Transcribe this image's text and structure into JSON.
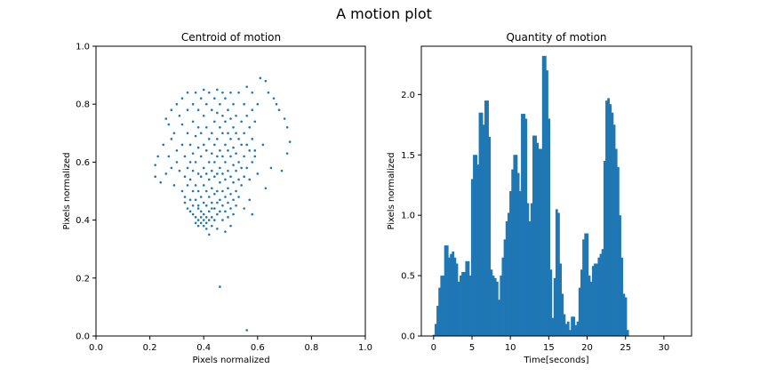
{
  "figure": {
    "suptitle": "A motion plot"
  },
  "chart_data": [
    {
      "type": "scatter",
      "title": "Centroid of motion",
      "xlabel": "Pixels normalized",
      "ylabel": "Pixels normalized",
      "xlim": [
        0,
        1
      ],
      "ylim": [
        0,
        1
      ],
      "xticks": [
        0.0,
        0.2,
        0.4,
        0.6,
        0.8,
        1.0
      ],
      "yticks": [
        0.0,
        0.2,
        0.4,
        0.6,
        0.8,
        1.0
      ],
      "xtick_labels": [
        "0.0",
        "0.2",
        "0.4",
        "0.6",
        "0.8",
        "1.0"
      ],
      "ytick_labels": [
        "0.0",
        "0.2",
        "0.4",
        "0.6",
        "0.8",
        "1.0"
      ],
      "color": "#1f77b4",
      "grid": false,
      "points": [
        [
          0.22,
          0.59
        ],
        [
          0.22,
          0.55
        ],
        [
          0.23,
          0.62
        ],
        [
          0.24,
          0.53
        ],
        [
          0.25,
          0.66
        ],
        [
          0.26,
          0.75
        ],
        [
          0.26,
          0.56
        ],
        [
          0.27,
          0.73
        ],
        [
          0.27,
          0.62
        ],
        [
          0.28,
          0.78
        ],
        [
          0.28,
          0.68
        ],
        [
          0.28,
          0.58
        ],
        [
          0.29,
          0.7
        ],
        [
          0.29,
          0.52
        ],
        [
          0.3,
          0.8
        ],
        [
          0.3,
          0.64
        ],
        [
          0.3,
          0.6
        ],
        [
          0.31,
          0.76
        ],
        [
          0.31,
          0.57
        ],
        [
          0.32,
          0.82
        ],
        [
          0.32,
          0.73
        ],
        [
          0.32,
          0.66
        ],
        [
          0.32,
          0.5
        ],
        [
          0.33,
          0.62
        ],
        [
          0.33,
          0.55
        ],
        [
          0.33,
          0.48
        ],
        [
          0.33,
          0.46
        ],
        [
          0.34,
          0.84
        ],
        [
          0.34,
          0.78
        ],
        [
          0.34,
          0.7
        ],
        [
          0.34,
          0.58
        ],
        [
          0.34,
          0.52
        ],
        [
          0.34,
          0.44
        ],
        [
          0.35,
          0.66
        ],
        [
          0.35,
          0.6
        ],
        [
          0.35,
          0.54
        ],
        [
          0.35,
          0.47
        ],
        [
          0.35,
          0.43
        ],
        [
          0.36,
          0.8
        ],
        [
          0.36,
          0.74
        ],
        [
          0.36,
          0.63
        ],
        [
          0.36,
          0.57
        ],
        [
          0.36,
          0.5
        ],
        [
          0.36,
          0.45
        ],
        [
          0.36,
          0.42
        ],
        [
          0.37,
          0.84
        ],
        [
          0.37,
          0.69
        ],
        [
          0.37,
          0.6
        ],
        [
          0.37,
          0.52
        ],
        [
          0.37,
          0.47
        ],
        [
          0.37,
          0.41
        ],
        [
          0.37,
          0.39
        ],
        [
          0.38,
          0.78
        ],
        [
          0.38,
          0.72
        ],
        [
          0.38,
          0.65
        ],
        [
          0.38,
          0.56
        ],
        [
          0.38,
          0.5
        ],
        [
          0.38,
          0.44
        ],
        [
          0.38,
          0.4
        ],
        [
          0.38,
          0.38
        ],
        [
          0.39,
          0.82
        ],
        [
          0.39,
          0.7
        ],
        [
          0.39,
          0.62
        ],
        [
          0.39,
          0.55
        ],
        [
          0.39,
          0.48
        ],
        [
          0.39,
          0.43
        ],
        [
          0.39,
          0.41
        ],
        [
          0.39,
          0.39
        ],
        [
          0.4,
          0.85
        ],
        [
          0.4,
          0.76
        ],
        [
          0.4,
          0.66
        ],
        [
          0.4,
          0.58
        ],
        [
          0.4,
          0.52
        ],
        [
          0.4,
          0.46
        ],
        [
          0.4,
          0.42
        ],
        [
          0.4,
          0.4
        ],
        [
          0.4,
          0.38
        ],
        [
          0.41,
          0.8
        ],
        [
          0.41,
          0.72
        ],
        [
          0.41,
          0.64
        ],
        [
          0.41,
          0.56
        ],
        [
          0.41,
          0.5
        ],
        [
          0.41,
          0.45
        ],
        [
          0.41,
          0.41
        ],
        [
          0.41,
          0.39
        ],
        [
          0.41,
          0.37
        ],
        [
          0.42,
          0.84
        ],
        [
          0.42,
          0.68
        ],
        [
          0.42,
          0.6
        ],
        [
          0.42,
          0.54
        ],
        [
          0.42,
          0.48
        ],
        [
          0.42,
          0.43
        ],
        [
          0.42,
          0.4
        ],
        [
          0.42,
          0.35
        ],
        [
          0.43,
          0.78
        ],
        [
          0.43,
          0.7
        ],
        [
          0.43,
          0.63
        ],
        [
          0.43,
          0.57
        ],
        [
          0.43,
          0.51
        ],
        [
          0.43,
          0.46
        ],
        [
          0.43,
          0.41
        ],
        [
          0.43,
          0.38
        ],
        [
          0.44,
          0.82
        ],
        [
          0.44,
          0.74
        ],
        [
          0.44,
          0.66
        ],
        [
          0.44,
          0.6
        ],
        [
          0.44,
          0.55
        ],
        [
          0.44,
          0.49
        ],
        [
          0.44,
          0.44
        ],
        [
          0.44,
          0.4
        ],
        [
          0.45,
          0.85
        ],
        [
          0.45,
          0.77
        ],
        [
          0.45,
          0.68
        ],
        [
          0.45,
          0.62
        ],
        [
          0.45,
          0.56
        ],
        [
          0.45,
          0.5
        ],
        [
          0.45,
          0.46
        ],
        [
          0.45,
          0.42
        ],
        [
          0.45,
          0.37
        ],
        [
          0.46,
          0.8
        ],
        [
          0.46,
          0.72
        ],
        [
          0.46,
          0.64
        ],
        [
          0.46,
          0.58
        ],
        [
          0.46,
          0.53
        ],
        [
          0.46,
          0.47
        ],
        [
          0.46,
          0.43
        ],
        [
          0.46,
          0.17
        ],
        [
          0.47,
          0.84
        ],
        [
          0.47,
          0.76
        ],
        [
          0.47,
          0.7
        ],
        [
          0.47,
          0.62
        ],
        [
          0.47,
          0.56
        ],
        [
          0.47,
          0.5
        ],
        [
          0.47,
          0.45
        ],
        [
          0.47,
          0.4
        ],
        [
          0.48,
          0.82
        ],
        [
          0.48,
          0.74
        ],
        [
          0.48,
          0.66
        ],
        [
          0.48,
          0.6
        ],
        [
          0.48,
          0.54
        ],
        [
          0.48,
          0.48
        ],
        [
          0.48,
          0.43
        ],
        [
          0.48,
          0.36
        ],
        [
          0.49,
          0.78
        ],
        [
          0.49,
          0.7
        ],
        [
          0.49,
          0.64
        ],
        [
          0.49,
          0.57
        ],
        [
          0.49,
          0.51
        ],
        [
          0.49,
          0.46
        ],
        [
          0.49,
          0.41
        ],
        [
          0.5,
          0.84
        ],
        [
          0.5,
          0.75
        ],
        [
          0.5,
          0.68
        ],
        [
          0.5,
          0.62
        ],
        [
          0.5,
          0.55
        ],
        [
          0.5,
          0.49
        ],
        [
          0.5,
          0.44
        ],
        [
          0.5,
          0.38
        ],
        [
          0.51,
          0.8
        ],
        [
          0.51,
          0.72
        ],
        [
          0.51,
          0.65
        ],
        [
          0.51,
          0.59
        ],
        [
          0.51,
          0.53
        ],
        [
          0.51,
          0.47
        ],
        [
          0.51,
          0.42
        ],
        [
          0.52,
          0.76
        ],
        [
          0.52,
          0.7
        ],
        [
          0.52,
          0.63
        ],
        [
          0.52,
          0.57
        ],
        [
          0.52,
          0.5
        ],
        [
          0.52,
          0.45
        ],
        [
          0.53,
          0.84
        ],
        [
          0.53,
          0.68
        ],
        [
          0.53,
          0.6
        ],
        [
          0.53,
          0.54
        ],
        [
          0.53,
          0.48
        ],
        [
          0.54,
          0.74
        ],
        [
          0.54,
          0.66
        ],
        [
          0.54,
          0.58
        ],
        [
          0.54,
          0.52
        ],
        [
          0.55,
          0.8
        ],
        [
          0.55,
          0.7
        ],
        [
          0.55,
          0.62
        ],
        [
          0.55,
          0.55
        ],
        [
          0.55,
          0.44
        ],
        [
          0.56,
          0.86
        ],
        [
          0.56,
          0.76
        ],
        [
          0.56,
          0.66
        ],
        [
          0.56,
          0.58
        ],
        [
          0.56,
          0.02
        ],
        [
          0.57,
          0.72
        ],
        [
          0.57,
          0.64
        ],
        [
          0.57,
          0.47
        ],
        [
          0.58,
          0.84
        ],
        [
          0.58,
          0.68
        ],
        [
          0.58,
          0.6
        ],
        [
          0.58,
          0.42
        ],
        [
          0.59,
          0.74
        ],
        [
          0.59,
          0.64
        ],
        [
          0.6,
          0.56
        ],
        [
          0.61,
          0.89
        ],
        [
          0.62,
          0.66
        ],
        [
          0.63,
          0.88
        ],
        [
          0.63,
          0.51
        ],
        [
          0.64,
          0.84
        ],
        [
          0.65,
          0.58
        ],
        [
          0.66,
          0.82
        ],
        [
          0.67,
          0.8
        ],
        [
          0.68,
          0.78
        ],
        [
          0.69,
          0.57
        ],
        [
          0.7,
          0.75
        ],
        [
          0.71,
          0.72
        ],
        [
          0.71,
          0.63
        ],
        [
          0.72,
          0.67
        ],
        [
          0.6,
          0.8
        ],
        [
          0.58,
          0.78
        ],
        [
          0.59,
          0.62
        ],
        [
          0.57,
          0.54
        ],
        [
          0.38,
          0.45
        ],
        [
          0.43,
          0.44
        ]
      ]
    },
    {
      "type": "bar",
      "title": "Quantity of motion",
      "xlabel": "Time[seconds]",
      "ylabel": "Pixels normalized",
      "xlim": [
        -1.6,
        33.6
      ],
      "ylim": [
        0,
        2.4
      ],
      "xticks": [
        0,
        5,
        10,
        15,
        20,
        25,
        30
      ],
      "yticks": [
        0.0,
        0.5,
        1.0,
        1.5,
        2.0
      ],
      "xtick_labels": [
        "0",
        "5",
        "10",
        "15",
        "20",
        "25",
        "30"
      ],
      "ytick_labels": [
        "0.0",
        "0.5",
        "1.0",
        "1.5",
        "2.0"
      ],
      "color": "#1f77b4",
      "grid": false,
      "bar_width": 0.25,
      "x_start": 0.0,
      "x_step": 0.25,
      "values": [
        0.01,
        0.1,
        0.25,
        0.4,
        0.5,
        0.5,
        0.75,
        0.75,
        0.65,
        0.68,
        0.7,
        0.65,
        0.6,
        0.45,
        0.5,
        0.53,
        0.53,
        0.62,
        0.62,
        0.5,
        1.3,
        1.5,
        1.5,
        1.42,
        1.85,
        1.85,
        1.75,
        1.95,
        1.95,
        1.65,
        0.55,
        0.5,
        0.48,
        0.45,
        0.3,
        0.5,
        0.65,
        0.8,
        0.95,
        1.02,
        1.2,
        1.38,
        1.5,
        1.5,
        1.35,
        1.2,
        1.84,
        1.84,
        1.8,
        1.1,
        0.95,
        1.1,
        1.66,
        1.66,
        1.6,
        1.55,
        1.55,
        2.32,
        2.32,
        2.2,
        1.8,
        0.55,
        0.15,
        0.48,
        1.05,
        1.02,
        0.6,
        0.35,
        0.18,
        0.1,
        0.12,
        0.05,
        0.16,
        0.16,
        0.09,
        0.12,
        0.4,
        0.55,
        0.8,
        0.85,
        0.85,
        0.5,
        0.45,
        0.58,
        0.6,
        0.6,
        0.65,
        0.68,
        0.72,
        1.45,
        1.95,
        1.97,
        1.92,
        1.85,
        1.75,
        1.55,
        1.4,
        1.0,
        0.65,
        0.35,
        0.32,
        0.05
      ]
    }
  ]
}
